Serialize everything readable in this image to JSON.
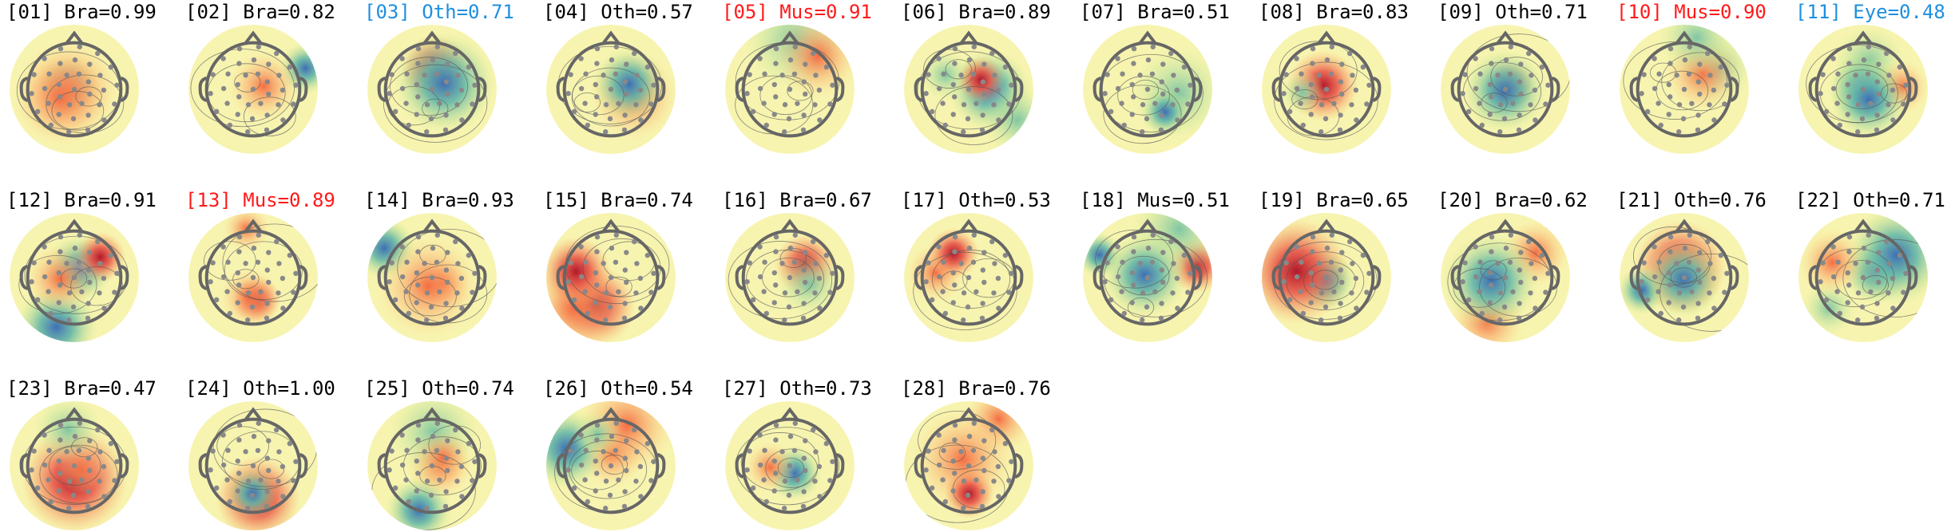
{
  "panels": [
    {
      "label": "[01] Bra=0.99",
      "color": "#000000"
    },
    {
      "label": "[02] Bra=0.82",
      "color": "#000000"
    },
    {
      "label": "[03] Oth=0.71",
      "color": "#1f8fe0"
    },
    {
      "label": "[04] Oth=0.57",
      "color": "#000000"
    },
    {
      "label": "[05] Mus=0.91",
      "color": "#ff1a1a"
    },
    {
      "label": "[06] Bra=0.89",
      "color": "#000000"
    },
    {
      "label": "[07] Bra=0.51",
      "color": "#000000"
    },
    {
      "label": "[08] Bra=0.83",
      "color": "#000000"
    },
    {
      "label": "[09] Oth=0.71",
      "color": "#000000"
    },
    {
      "label": "[10] Mus=0.90",
      "color": "#ff1a1a"
    },
    {
      "label": "[11] Eye=0.48",
      "color": "#1f8fe0"
    },
    {
      "label": "[12] Bra=0.91",
      "color": "#000000"
    },
    {
      "label": "[13] Mus=0.89",
      "color": "#ff1a1a"
    },
    {
      "label": "[14] Bra=0.93",
      "color": "#000000"
    },
    {
      "label": "[15] Bra=0.74",
      "color": "#000000"
    },
    {
      "label": "[16] Bra=0.67",
      "color": "#000000"
    },
    {
      "label": "[17] Oth=0.53",
      "color": "#000000"
    },
    {
      "label": "[18] Mus=0.51",
      "color": "#000000"
    },
    {
      "label": "[19] Bra=0.65",
      "color": "#000000"
    },
    {
      "label": "[20] Bra=0.62",
      "color": "#000000"
    },
    {
      "label": "[21] Oth=0.76",
      "color": "#000000"
    },
    {
      "label": "[22] Oth=0.71",
      "color": "#000000"
    },
    {
      "label": "[23] Bra=0.47",
      "color": "#000000"
    },
    {
      "label": "[24] Oth=1.00",
      "color": "#000000"
    },
    {
      "label": "[25] Oth=0.74",
      "color": "#000000"
    },
    {
      "label": "[26] Oth=0.54",
      "color": "#000000"
    },
    {
      "label": "[27] Oth=0.73",
      "color": "#000000"
    },
    {
      "label": "[28] Bra=0.76",
      "color": "#000000"
    }
  ]
}
